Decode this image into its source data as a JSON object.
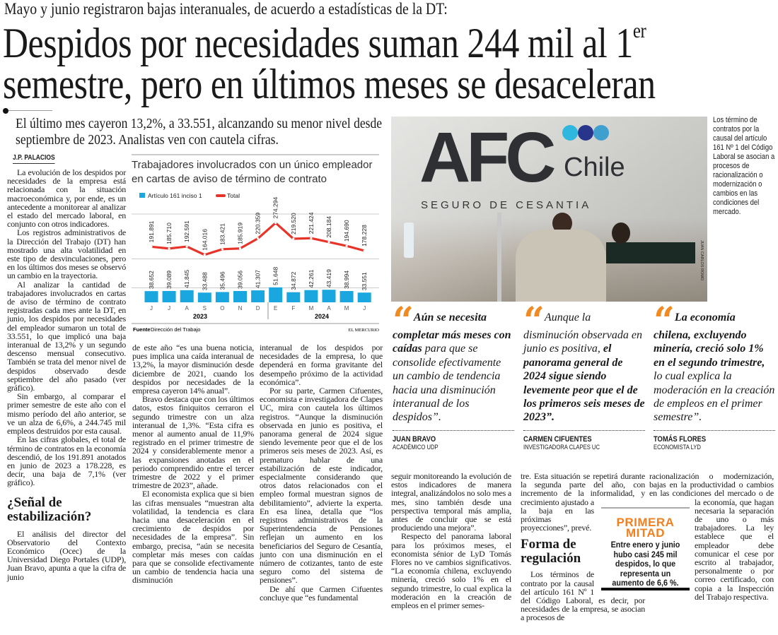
{
  "kicker": "Mayo y junio registraron bajas interanuales, de acuerdo a estadísticas de la DT:",
  "headline": {
    "line1": "Despidos por necesidades suman 244 mil al 1",
    "sup": "er",
    "line2": "semestre, pero en últimos meses se desaceleran"
  },
  "deck": "El último mes cayeron 13,2%, a 33.551, alcanzando su menor nivel desde septiembre de 2023. Analistas ven con cautela cifras.",
  "byline": "J.P. PALACIOS",
  "columns": {
    "c1": {
      "p1": "La evolución de los despidos por necesidades de la empresa está relacionada con la situación macroeconómica y, por ende, es un antecedente a monitorear al analizar el estado del mercado laboral, en conjunto con otros indicadores.",
      "p2": "Los registros administrativos de la Dirección del Trabajo (DT) han mostrado una alta volatilidad en este tipo de desvinculaciones, pero en los últimos dos meses se observó un cambio en la trayectoria.",
      "p3": "Al analizar la cantidad de trabajadores involucrados en cartas de aviso de término de contrato registradas cada mes ante la DT, en junio, los despidos por necesidades del empleador sumaron un total de 33.551, lo que implicó una baja interanual de 13,2% y un segundo descenso mensual consecutivo. También se trata del menor nivel de despidos observado desde septiembre del año pasado (ver gráfico).",
      "p4": "Sin embargo, al comparar el primer semestre de este año con el mismo período del año anterior, se ve un alza de 6,6%, a 244.745 mil empleos destruidos por esta causal.",
      "p5": "En las cifras globales, el total de término de contratos en la economía descendió, de los 191.891 anotados en junio de 2023 a 178.228, es decir, una baja de 7,1% (ver gráfico).",
      "subhead": "¿Señal de estabilización?",
      "p6": "El análisis del director del Observatorio del Contexto Económico (Ocec) de la Universidad Diego Portales (UDP), Juan Bravo, apunta a que la cifra de junio"
    },
    "c2": {
      "p1": "de este año “es una buena noticia, pues implica una caída interanual de 13,2%, la mayor disminución desde diciembre de 2021, cuando los despidos por necesidades de la empresa cayeron 14% anual”.",
      "p2": "Bravo destaca que con los últimos datos, estos finiquitos cerraron el segundo trimestre con un alza interanual de 1,3%. “Esta cifra es menor al aumento anual de 11,9% registrado en el primer trimestre de 2024 y considerablemente menor a las expansiones anotadas en el periodo comprendido entre el tercer trimestre de 2022 y el primer trimestre de 2023”, añade.",
      "p3": "El economista explica que si bien las cifras mensuales “muestran alta volatilidad, la tendencia es clara hacia una desaceleración en el crecimiento de despidos por necesidades de la empresa”. Sin embargo, precisa, “aún se necesita completar más meses con caídas para que se consolide efectivamente un cambio de tendencia hacia una disminución"
    },
    "c3": {
      "p1": "interanual de los despidos por necesidades de la empresa, lo que dependerá en forma gravitante del desempeño próximo de la actividad económica”.",
      "p2": "Por su parte, Carmen Cifuentes, economista e investigadora de Clapes UC, mira con cautela los últimos registros. “Aunque la disminución observada en junio es positiva, el panorama general de 2024 sigue siendo levemente peor que el de los primeros seis meses de 2023. Así, es prematuro hablar de una estabilización de este indicador, especialmente considerando que otros datos relacionados con el empleo formal muestran signos de debilitamiento”, advierte la experta. En esa línea, detalla que “los registros administrativos de la Superintendencia de Pensiones reflejan un aumento en los beneficiarios del Seguro de Cesantía, junto con una disminución en el número de cotizantes, tanto de este seguro como del sistema de pensiones”.",
      "p3": "De ahí que Carmen Cifuentes concluye que “es fundamental"
    },
    "c4": {
      "p1": "seguir monitoreando la evolución de estos indicadores de manera integral, analizándolos no solo mes a mes, sino también desde una perspectiva temporal más amplia, antes de concluir que se está produciendo una mejora”.",
      "p2": "Respecto del panorama laboral para los próximos meses, el economista sénior de LyD Tomás Flores no ve cambios significativos. “La economía chilena, excluyendo minería, creció solo 1% en el segundo trimestre, lo cual explica la moderación en la creación de empleos en el primer semes-"
    },
    "c5": {
      "p1": "tre. Esta situación se repetirá durante la segunda parte del año, con incremento de la informalidad, y crecimiento ajustado a la baja en las próximas proyecciones”, prevé.",
      "subhead": "Forma de regulación",
      "p2": "Los términos de contrato por la causal del artículo 161 Nº 1 del Código Laboral, es decir, por necesidades de la empresa, se asocian a procesos de"
    },
    "c6": {
      "p1": "racionalización o modernización, bajas en la productividad o cambios en las condiciones del mercado o de la economía, que hagan necesaria la separación de uno o más trabajadores. La ley establece que el empleador debe comunicar el cese por escrito al trabajador, personalmente o por correo certificado, con copia a la Inspección del Trabajo respectiva."
    }
  },
  "photo": {
    "logo_text": "AFC",
    "logo_sub": "Chile",
    "wall_text": "SEGURO DE CESANTIA",
    "credit": "JUAN CARLOS ROMO"
  },
  "caption": "Los término de contratos por la causal del artículo 161 Nº 1 del Código Laboral se asocian a procesos de racionalización o modernización o cambios en las condiciones del mercado.",
  "quotes": [
    {
      "bold_first": true,
      "a": "Aún se necesita completar más meses con caídas",
      "b": " para que se consolide efectivamente un cambio de tendencia hacia una disminución interanual de los despidos”.",
      "name": "JUAN BRAVO",
      "role": "ACADÉMICO UDP"
    },
    {
      "bold_first": false,
      "a": "Aunque la disminución observada en junio es positiva, ",
      "b": "el panorama general de 2024 sigue siendo levemente peor que el de los primeros seis meses de 2023”.",
      "name": "CARMEN CIFUENTES",
      "role": "INVESTIGADORA CLAPES UC"
    },
    {
      "bold_first": true,
      "a": "La economía chilena, excluyendo minería, creció solo 1% en el segundo trimestre,",
      "b": " lo cual explica la moderación en la creación de empleos en el primer semestre”.",
      "name": "TOMÁS FLORES",
      "role": "ECONOMISTA LYD"
    }
  ],
  "box": {
    "title_line1": "PRIMERA",
    "title_line2": "MITAD",
    "body": "Entre enero y junio hubo casi 245 mil despidos, lo que representa un aumento de 6,6 %."
  },
  "colors": {
    "accent": "#f08a24",
    "bar": "#1aa7e0",
    "line": "#e8332a"
  },
  "chart_data": {
    "type": "bar+line",
    "title": "Trabajadores involucrados con un único empleador en cartas de aviso de término de contrato",
    "categories": [
      "J",
      "J",
      "A",
      "S",
      "O",
      "N",
      "D",
      "E",
      "F",
      "M",
      "A",
      "M",
      "J"
    ],
    "year_labels": [
      "2023",
      "2024"
    ],
    "series": [
      {
        "name": "Artículo 161 inciso 1",
        "type": "bar",
        "values": [
          38652,
          39089,
          41845,
          33488,
          35496,
          39056,
          41307,
          51648,
          34872,
          42261,
          43419,
          38994,
          33551
        ],
        "labels": [
          "38.652",
          "39.089",
          "41.845",
          "33.488",
          "35.496",
          "39.056",
          "41.307",
          "51.648",
          "34.872",
          "42.261",
          "43.419",
          "38.994",
          "33.551"
        ]
      },
      {
        "name": "Total",
        "type": "line",
        "values": [
          191891,
          185710,
          192591,
          164016,
          183421,
          185919,
          220359,
          274294,
          219520,
          221424,
          208184,
          194690,
          178228
        ],
        "labels": [
          "191.891",
          "185.710",
          "192.591",
          "164.016",
          "183.421",
          "185.919",
          "220.359",
          "274.294",
          "219.520",
          "221.424",
          "208.184",
          "194.690",
          "178.228"
        ]
      }
    ],
    "grid": true,
    "legend": "top-left",
    "source_label": "Fuente",
    "source": "Dirección del Trabajo",
    "credit": "EL MERCURIO"
  }
}
